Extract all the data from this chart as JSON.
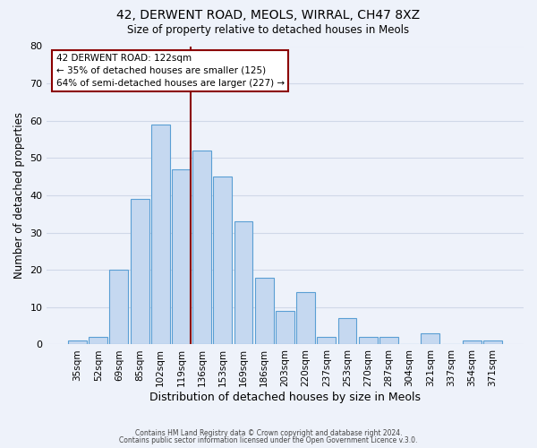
{
  "title1": "42, DERWENT ROAD, MEOLS, WIRRAL, CH47 8XZ",
  "title2": "Size of property relative to detached houses in Meols",
  "xlabel": "Distribution of detached houses by size in Meols",
  "ylabel": "Number of detached properties",
  "bar_labels": [
    "35sqm",
    "52sqm",
    "69sqm",
    "85sqm",
    "102sqm",
    "119sqm",
    "136sqm",
    "153sqm",
    "169sqm",
    "186sqm",
    "203sqm",
    "220sqm",
    "237sqm",
    "253sqm",
    "270sqm",
    "287sqm",
    "304sqm",
    "321sqm",
    "337sqm",
    "354sqm",
    "371sqm"
  ],
  "bar_values": [
    1,
    2,
    20,
    39,
    59,
    47,
    52,
    45,
    33,
    18,
    9,
    14,
    2,
    7,
    2,
    2,
    0,
    3,
    0,
    1,
    1
  ],
  "bar_color": "#c5d8f0",
  "bar_edge_color": "#5a9fd4",
  "grid_color": "#d0d8e8",
  "background_color": "#eef2fa",
  "marker_color": "#8b0000",
  "annotation_title": "42 DERWENT ROAD: 122sqm",
  "annotation_line1": "← 35% of detached houses are smaller (125)",
  "annotation_line2": "64% of semi-detached houses are larger (227) →",
  "annotation_box_color": "#ffffff",
  "annotation_box_edge": "#8b0000",
  "ylim": [
    0,
    80
  ],
  "yticks": [
    0,
    10,
    20,
    30,
    40,
    50,
    60,
    70,
    80
  ],
  "footer1": "Contains HM Land Registry data © Crown copyright and database right 2024.",
  "footer2": "Contains public sector information licensed under the Open Government Licence v.3.0."
}
